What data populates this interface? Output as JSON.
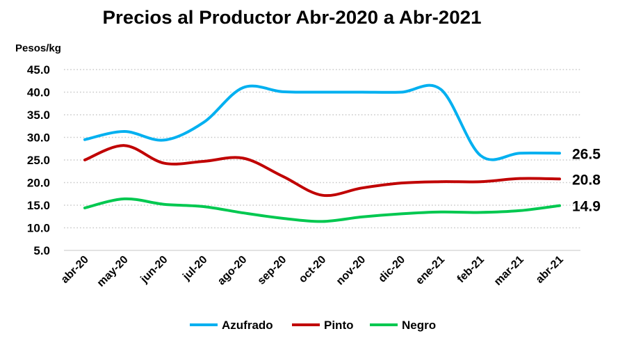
{
  "chart_data": {
    "type": "line",
    "title": "Precios al Productor Abr-2020 a Abr-2021",
    "ylabel": "Pesos/kg",
    "xlabel": "",
    "ylim": [
      5,
      45
    ],
    "yticks": [
      "5.0",
      "10.0",
      "15.0",
      "20.0",
      "25.0",
      "30.0",
      "35.0",
      "40.0",
      "45.0"
    ],
    "grid": true,
    "legend": "bottom",
    "categories": [
      "abr-20",
      "may-20",
      "jun-20",
      "jul-20",
      "ago-20",
      "sep-20",
      "oct-20",
      "nov-20",
      "dic-20",
      "ene-21",
      "feb-21",
      "mar-21",
      "abr-21"
    ],
    "series": [
      {
        "name": "Azufrado",
        "color": "#00B0F0",
        "end_label": "26.5",
        "values": [
          29.5,
          31.3,
          29.4,
          33.3,
          41.0,
          40.1,
          40.0,
          40.0,
          40.0,
          40.6,
          26.0,
          26.5,
          26.5
        ]
      },
      {
        "name": "Pinto",
        "color": "#C00000",
        "end_label": "20.8",
        "values": [
          25.0,
          28.2,
          24.3,
          24.7,
          25.4,
          21.4,
          17.2,
          18.8,
          19.9,
          20.2,
          20.2,
          20.9,
          20.8
        ]
      },
      {
        "name": "Negro",
        "color": "#00C850",
        "end_label": "14.9",
        "values": [
          14.4,
          16.4,
          15.2,
          14.7,
          13.3,
          12.1,
          11.4,
          12.4,
          13.1,
          13.5,
          13.4,
          13.8,
          14.9
        ]
      }
    ]
  }
}
